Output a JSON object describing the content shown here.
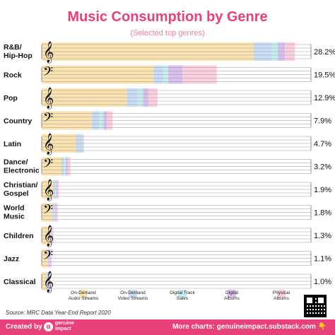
{
  "header": {
    "title": "Music Consumption by Genre",
    "subtitle": "(Selected top genres)"
  },
  "chart_data": {
    "type": "bar",
    "orientation": "horizontal",
    "stacked": true,
    "title": "Music Consumption by Genre",
    "subtitle": "(Selected top genres)",
    "categories": [
      "R&B/ Hip-Hop",
      "Rock",
      "Pop",
      "Country",
      "Latin",
      "Dance/ Electronic",
      "Christian/ Gospel",
      "World Music",
      "Children",
      "Jazz",
      "Classical"
    ],
    "category_lines": [
      [
        "R&B/",
        "Hip-Hop"
      ],
      [
        "Rock"
      ],
      [
        "Pop"
      ],
      [
        "Country"
      ],
      [
        "Latin"
      ],
      [
        "Dance/",
        "Electronic"
      ],
      [
        "Christian/",
        "Gospel"
      ],
      [
        "World",
        "Music"
      ],
      [
        "Children"
      ],
      [
        "Jazz"
      ],
      [
        "Classical"
      ]
    ],
    "totals": [
      28.2,
      19.5,
      12.9,
      7.9,
      4.7,
      3.2,
      1.9,
      1.8,
      1.3,
      1.1,
      1.0
    ],
    "total_labels": [
      "28.2%",
      "19.5%",
      "12.9%",
      "7.9%",
      "4.7%",
      "3.2%",
      "1.9%",
      "1.8%",
      "1.3%",
      "1.1%",
      "1.0%"
    ],
    "series": [
      {
        "name": "On-Demand Audio Streams",
        "name_lines": [
          "On-Demand",
          "Audio Streams"
        ],
        "color": "#fbe3b0",
        "values": [
          23.6,
          12.5,
          9.5,
          5.6,
          3.8,
          2.2,
          1.3,
          1.2,
          0.95,
          0.7,
          0.55
        ]
      },
      {
        "name": "On-Demand Video Streams",
        "name_lines": [
          "On-Demand",
          "Video Streams"
        ],
        "color": "#c9dcf5",
        "values": [
          2.0,
          1.0,
          1.2,
          0.8,
          0.7,
          0.3,
          0.2,
          0.2,
          0.15,
          0.1,
          0.15
        ]
      },
      {
        "name": "Digital Track Sales",
        "name_lines": [
          "Digital Track",
          "Sales"
        ],
        "color": "#c6efef",
        "values": [
          0.7,
          0.6,
          0.6,
          0.5,
          0.1,
          0.2,
          0.15,
          0.1,
          0.05,
          0.05,
          0.05
        ]
      },
      {
        "name": "Digital Albums",
        "name_lines": [
          "Digital",
          "Albums"
        ],
        "color": "#d9bfee",
        "values": [
          0.8,
          1.6,
          0.6,
          0.4,
          0.05,
          0.2,
          0.1,
          0.1,
          0.05,
          0.1,
          0.1
        ]
      },
      {
        "name": "Physical Albums",
        "name_lines": [
          "Physical",
          "Albums"
        ],
        "color": "#fbcfe0",
        "values": [
          1.1,
          3.8,
          1.0,
          0.6,
          0.05,
          0.3,
          0.15,
          0.2,
          0.1,
          0.15,
          0.15
        ]
      }
    ],
    "xlim": [
      0,
      30
    ],
    "legend_position": "bottom",
    "grid": false,
    "decoration": "staff lines with alternating treble and bass clefs"
  },
  "source": "Source: MRC Data Year-End Report 2020",
  "footer": {
    "created_by": "Created by",
    "brand": "genuine impact",
    "more": "More charts: genuineimpact.substack.com 👇"
  }
}
